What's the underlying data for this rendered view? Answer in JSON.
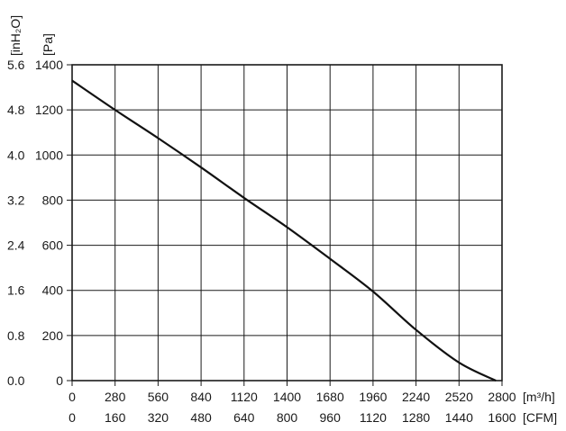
{
  "chart_data": {
    "type": "line",
    "title": "",
    "x_axis_primary": {
      "unit": "[m³/h]",
      "ticks": [
        "0",
        "280",
        "560",
        "840",
        "1120",
        "1400",
        "1680",
        "1960",
        "2240",
        "2520",
        "2800"
      ],
      "range": [
        0,
        2800
      ]
    },
    "x_axis_secondary": {
      "unit": "[CFM]",
      "ticks": [
        "0",
        "160",
        "320",
        "480",
        "640",
        "800",
        "960",
        "1120",
        "1280",
        "1440",
        "1600"
      ]
    },
    "y_axis_primary": {
      "unit": "[Pa]",
      "ticks": [
        "0",
        "200",
        "400",
        "600",
        "800",
        "1000",
        "1200",
        "1400"
      ],
      "range": [
        0,
        1400
      ]
    },
    "y_axis_secondary": {
      "unit": "[inH₂O]",
      "ticks": [
        "0.0",
        "0.8",
        "1.6",
        "2.4",
        "3.2",
        "4.0",
        "4.8",
        "5.6"
      ]
    },
    "grid": true,
    "series": [
      {
        "x": [
          0,
          280,
          560,
          840,
          1120,
          1400,
          1680,
          1960,
          2240,
          2520,
          2760
        ],
        "y": [
          1330,
          1200,
          1075,
          945,
          810,
          680,
          540,
          395,
          225,
          80,
          0
        ]
      }
    ]
  }
}
